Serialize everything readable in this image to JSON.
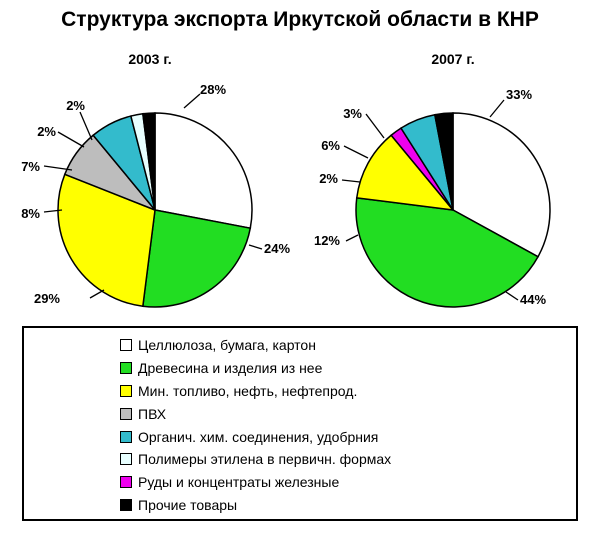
{
  "title": "Структура экспорта Иркутской области в КНР",
  "legend": [
    {
      "label": "Целлюлоза, бумага, картон",
      "color": "#ffffff"
    },
    {
      "label": "Древесина и изделия из нее",
      "color": "#22dd22"
    },
    {
      "label": "Мин. топливо, нефть, нефтепрод.",
      "color": "#ffff00"
    },
    {
      "label": "ПВХ",
      "color": "#bdbdbd"
    },
    {
      "label": "Органич. хим. соединения, удобрния",
      "color": "#33bbcc"
    },
    {
      "label": "Полимеры этилена в первичн. формах",
      "color": "#e8ffff"
    },
    {
      "label": "Руды и концентраты железные",
      "color": "#ee00ee"
    },
    {
      "label": "Прочие товары",
      "color": "#000000"
    }
  ],
  "chart_data": [
    {
      "type": "pie",
      "subtitle": "2003 г.",
      "slices": [
        {
          "category": "Целлюлоза, бумага, картон",
          "value": 28,
          "label": "28%"
        },
        {
          "category": "Древесина и изделия из нее",
          "value": 24,
          "label": "24%"
        },
        {
          "category": "Мин. топливо, нефть, нефтепрод.",
          "value": 29,
          "label": "29%"
        },
        {
          "category": "ПВХ",
          "value": 8,
          "label": "8%"
        },
        {
          "category": "Органич. хим. соединения, удобрния",
          "value": 7,
          "label": "7%"
        },
        {
          "category": "Полимеры этилена в первичн. формах",
          "value": 2,
          "label": "2%"
        },
        {
          "category": "Прочие товары",
          "value": 2,
          "label": "2%"
        }
      ]
    },
    {
      "type": "pie",
      "subtitle": "2007 г.",
      "slices": [
        {
          "category": "Целлюлоза, бумага, картон",
          "value": 33,
          "label": "33%"
        },
        {
          "category": "Древесина и изделия из нее",
          "value": 44,
          "label": "44%"
        },
        {
          "category": "Мин. топливо, нефть, нефтепрод.",
          "value": 12,
          "label": "12%"
        },
        {
          "category": "Руды и концентраты железные",
          "value": 2,
          "label": "2%"
        },
        {
          "category": "Органич. хим. соединения, удобрния",
          "value": 6,
          "label": "6%"
        },
        {
          "category": "Прочие товары",
          "value": 3,
          "label": "3%"
        }
      ]
    }
  ]
}
